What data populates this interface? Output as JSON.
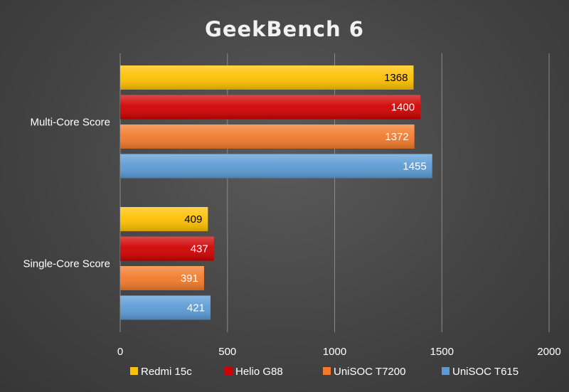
{
  "chart_data": {
    "type": "bar",
    "orientation": "horizontal",
    "title": "GeekBench 6",
    "categories": [
      "Multi-Core Score",
      "Single-Core Score"
    ],
    "series": [
      {
        "name": "Redmi 15c",
        "color": "#ffc000",
        "label_color": "#000000",
        "values": [
          1368,
          409
        ]
      },
      {
        "name": "Helio G88",
        "color": "#d00000",
        "label_color": "#ffffff",
        "values": [
          1400,
          437
        ]
      },
      {
        "name": "UniSOC T7200",
        "color": "#f27a2a",
        "label_color": "#ffffff",
        "values": [
          1372,
          391
        ]
      },
      {
        "name": "UniSOC T615",
        "color": "#5b9bd5",
        "label_color": "#ffffff",
        "values": [
          1455,
          421
        ]
      }
    ],
    "xlim": [
      0,
      2000
    ],
    "xticks": [
      0,
      500,
      1000,
      1500,
      2000
    ],
    "grid": true,
    "legend": "bottom"
  }
}
